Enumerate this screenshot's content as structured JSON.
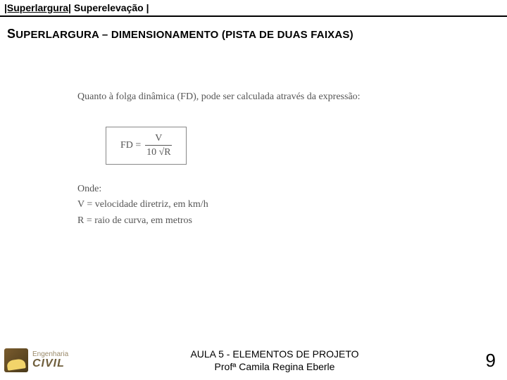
{
  "header": {
    "part1": "|Superlargura|",
    "part2": " Superelevação |"
  },
  "section_title": {
    "lead_big": "S",
    "lead_rest": "UPERLARGURA",
    "dash": " – ",
    "rest": "DIMENSIONAMENTO (PISTA DE DUAS FAIXAS)"
  },
  "content": {
    "intro": "Quanto à folga dinâmica (FD), pode ser calculada através da expressão:",
    "formula_lhs": "FD =",
    "formula_num": "V",
    "formula_den": "10 √R",
    "where_label": "Onde:",
    "where_v": "V = velocidade diretriz, em km/h",
    "where_r": "R = raio de curva, em metros"
  },
  "footer": {
    "logo_top": "Engenharia",
    "logo_bottom": "CIVIL",
    "line1": "AULA 5 - ELEMENTOS DE PROJETO",
    "line2": "Profª Camila Regina Eberle",
    "page": "9"
  },
  "colors": {
    "text_muted": "#555555",
    "border": "#000000",
    "logo_text": "#6e5d3b"
  }
}
